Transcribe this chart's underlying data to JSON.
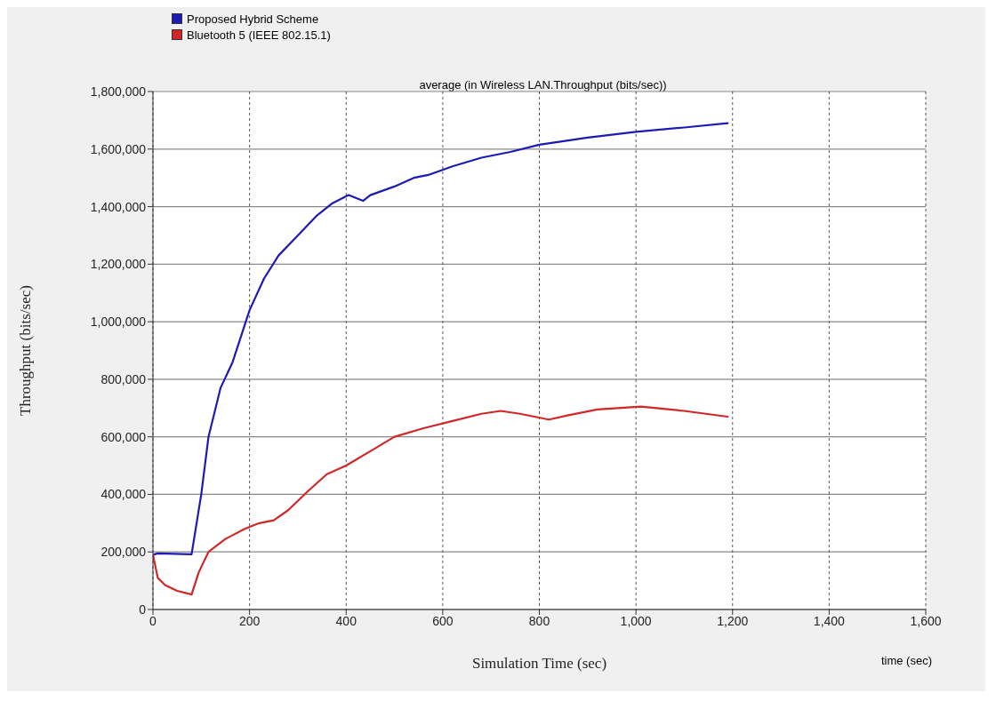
{
  "chart_data": {
    "type": "line",
    "subtitle": "average (in Wireless LAN.Throughput (bits/sec))",
    "xlabel": "Simulation Time (sec)",
    "ylabel": "Throughput (bits/sec)",
    "annotations": [
      "time (sec)"
    ],
    "series": [
      {
        "name": "Proposed Hybrid Scheme",
        "color": "#1c1cb4",
        "x": [
          0,
          10,
          80,
          100,
          115,
          140,
          165,
          200,
          230,
          260,
          300,
          340,
          370,
          405,
          420,
          435,
          450,
          500,
          540,
          570,
          620,
          680,
          740,
          800,
          900,
          1000,
          1100,
          1190
        ],
        "values": [
          190000,
          195000,
          192000,
          400000,
          600000,
          770000,
          860000,
          1040000,
          1150000,
          1230000,
          1300000,
          1370000,
          1410000,
          1440000,
          1430000,
          1420000,
          1440000,
          1470000,
          1500000,
          1510000,
          1540000,
          1570000,
          1590000,
          1615000,
          1640000,
          1660000,
          1675000,
          1690000
        ]
      },
      {
        "name": "Bluetooth 5 (IEEE 802.15.1)",
        "color": "#d02828",
        "x": [
          0,
          10,
          25,
          50,
          80,
          95,
          115,
          150,
          190,
          220,
          250,
          280,
          320,
          360,
          400,
          450,
          500,
          560,
          620,
          680,
          720,
          760,
          820,
          860,
          920,
          1010,
          1100,
          1190
        ],
        "values": [
          190000,
          110000,
          85000,
          65000,
          52000,
          130000,
          200000,
          245000,
          280000,
          300000,
          310000,
          345000,
          410000,
          470000,
          500000,
          550000,
          600000,
          630000,
          655000,
          680000,
          690000,
          680000,
          660000,
          675000,
          695000,
          705000,
          690000,
          670000
        ]
      }
    ],
    "xlim": [
      0,
      1600
    ],
    "xticks": [
      0,
      {
        "value": 200,
        "label": "200"
      },
      {
        "value": 400,
        "label": "400"
      },
      {
        "value": 600,
        "label": "600"
      },
      {
        "value": 800,
        "label": "800"
      },
      {
        "value": 1000,
        "label": "1,000"
      },
      {
        "value": 1200,
        "label": "1,200"
      },
      {
        "value": 1400,
        "label": "1,400"
      },
      {
        "value": 1600,
        "label": "1,600"
      }
    ],
    "ylim": [
      0,
      1800000
    ],
    "yticks": [
      0,
      {
        "value": 200000,
        "label": "200,000"
      },
      {
        "value": 400000,
        "label": "400,000"
      },
      {
        "value": 600000,
        "label": "600,000"
      },
      {
        "value": 800000,
        "label": "800,000"
      },
      {
        "value": 1000000,
        "label": "1,000,000"
      },
      {
        "value": 1200000,
        "label": "1,200,000"
      },
      {
        "value": 1400000,
        "label": "1,400,000"
      },
      {
        "value": 1600000,
        "label": "1,600,000"
      },
      {
        "value": 1800000,
        "label": "1,800,000"
      }
    ],
    "grid": true,
    "legend": "top left",
    "marker": "none",
    "line_style": "solid"
  }
}
